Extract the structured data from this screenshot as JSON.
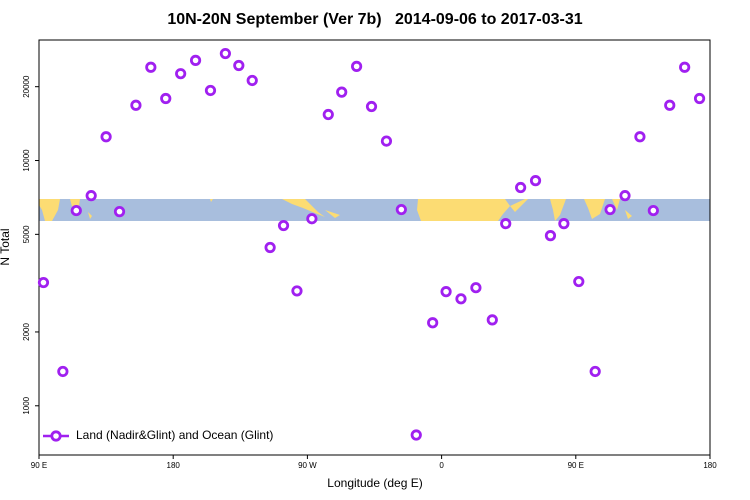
{
  "chart_data": {
    "type": "scatter",
    "title": "10N-20N September (Ver 7b)   2014-09-06 to 2017-03-31",
    "xlabel": "Longitude (deg E)",
    "ylabel": "N Total",
    "xlim": [
      90,
      540
    ],
    "xticks": [
      {
        "value": 90,
        "label": "90 E"
      },
      180,
      {
        "value": 270,
        "label": "90 W"
      },
      {
        "value": 360,
        "label": "0"
      },
      {
        "value": 450,
        "label": "90 E"
      },
      {
        "value": 540,
        "label": "180"
      }
    ],
    "ylim": [
      630,
      31000
    ],
    "ylog": true,
    "yticks": [
      1000,
      2000,
      5000,
      10000,
      20000
    ],
    "grid": false,
    "legend": "lower left",
    "series": [
      {
        "name": "Land (Nadir&Glint) and Ocean (Glint)",
        "color": "#a020f0",
        "x": [
          93,
          106,
          115,
          125,
          135,
          144,
          155,
          165,
          175,
          185,
          195,
          205,
          215,
          224,
          233,
          245,
          254,
          263,
          273,
          284,
          293,
          303,
          313,
          323,
          333,
          343,
          354,
          363,
          373,
          383,
          394,
          403,
          413,
          423,
          433,
          442,
          452,
          463,
          473,
          483,
          493,
          502,
          513,
          523,
          533
        ],
        "values": [
          3180,
          1380,
          6250,
          7190,
          12500,
          6190,
          16800,
          24000,
          17900,
          22600,
          25600,
          19300,
          27300,
          24400,
          21200,
          4420,
          5430,
          2940,
          5790,
          15400,
          19000,
          24200,
          16600,
          12000,
          6310,
          760,
          2180,
          2920,
          2730,
          3030,
          2240,
          5530,
          7760,
          8280,
          4940,
          5530,
          3210,
          1380,
          6310,
          7190,
          12500,
          6250,
          16800,
          24000,
          17900
        ]
      }
    ]
  }
}
